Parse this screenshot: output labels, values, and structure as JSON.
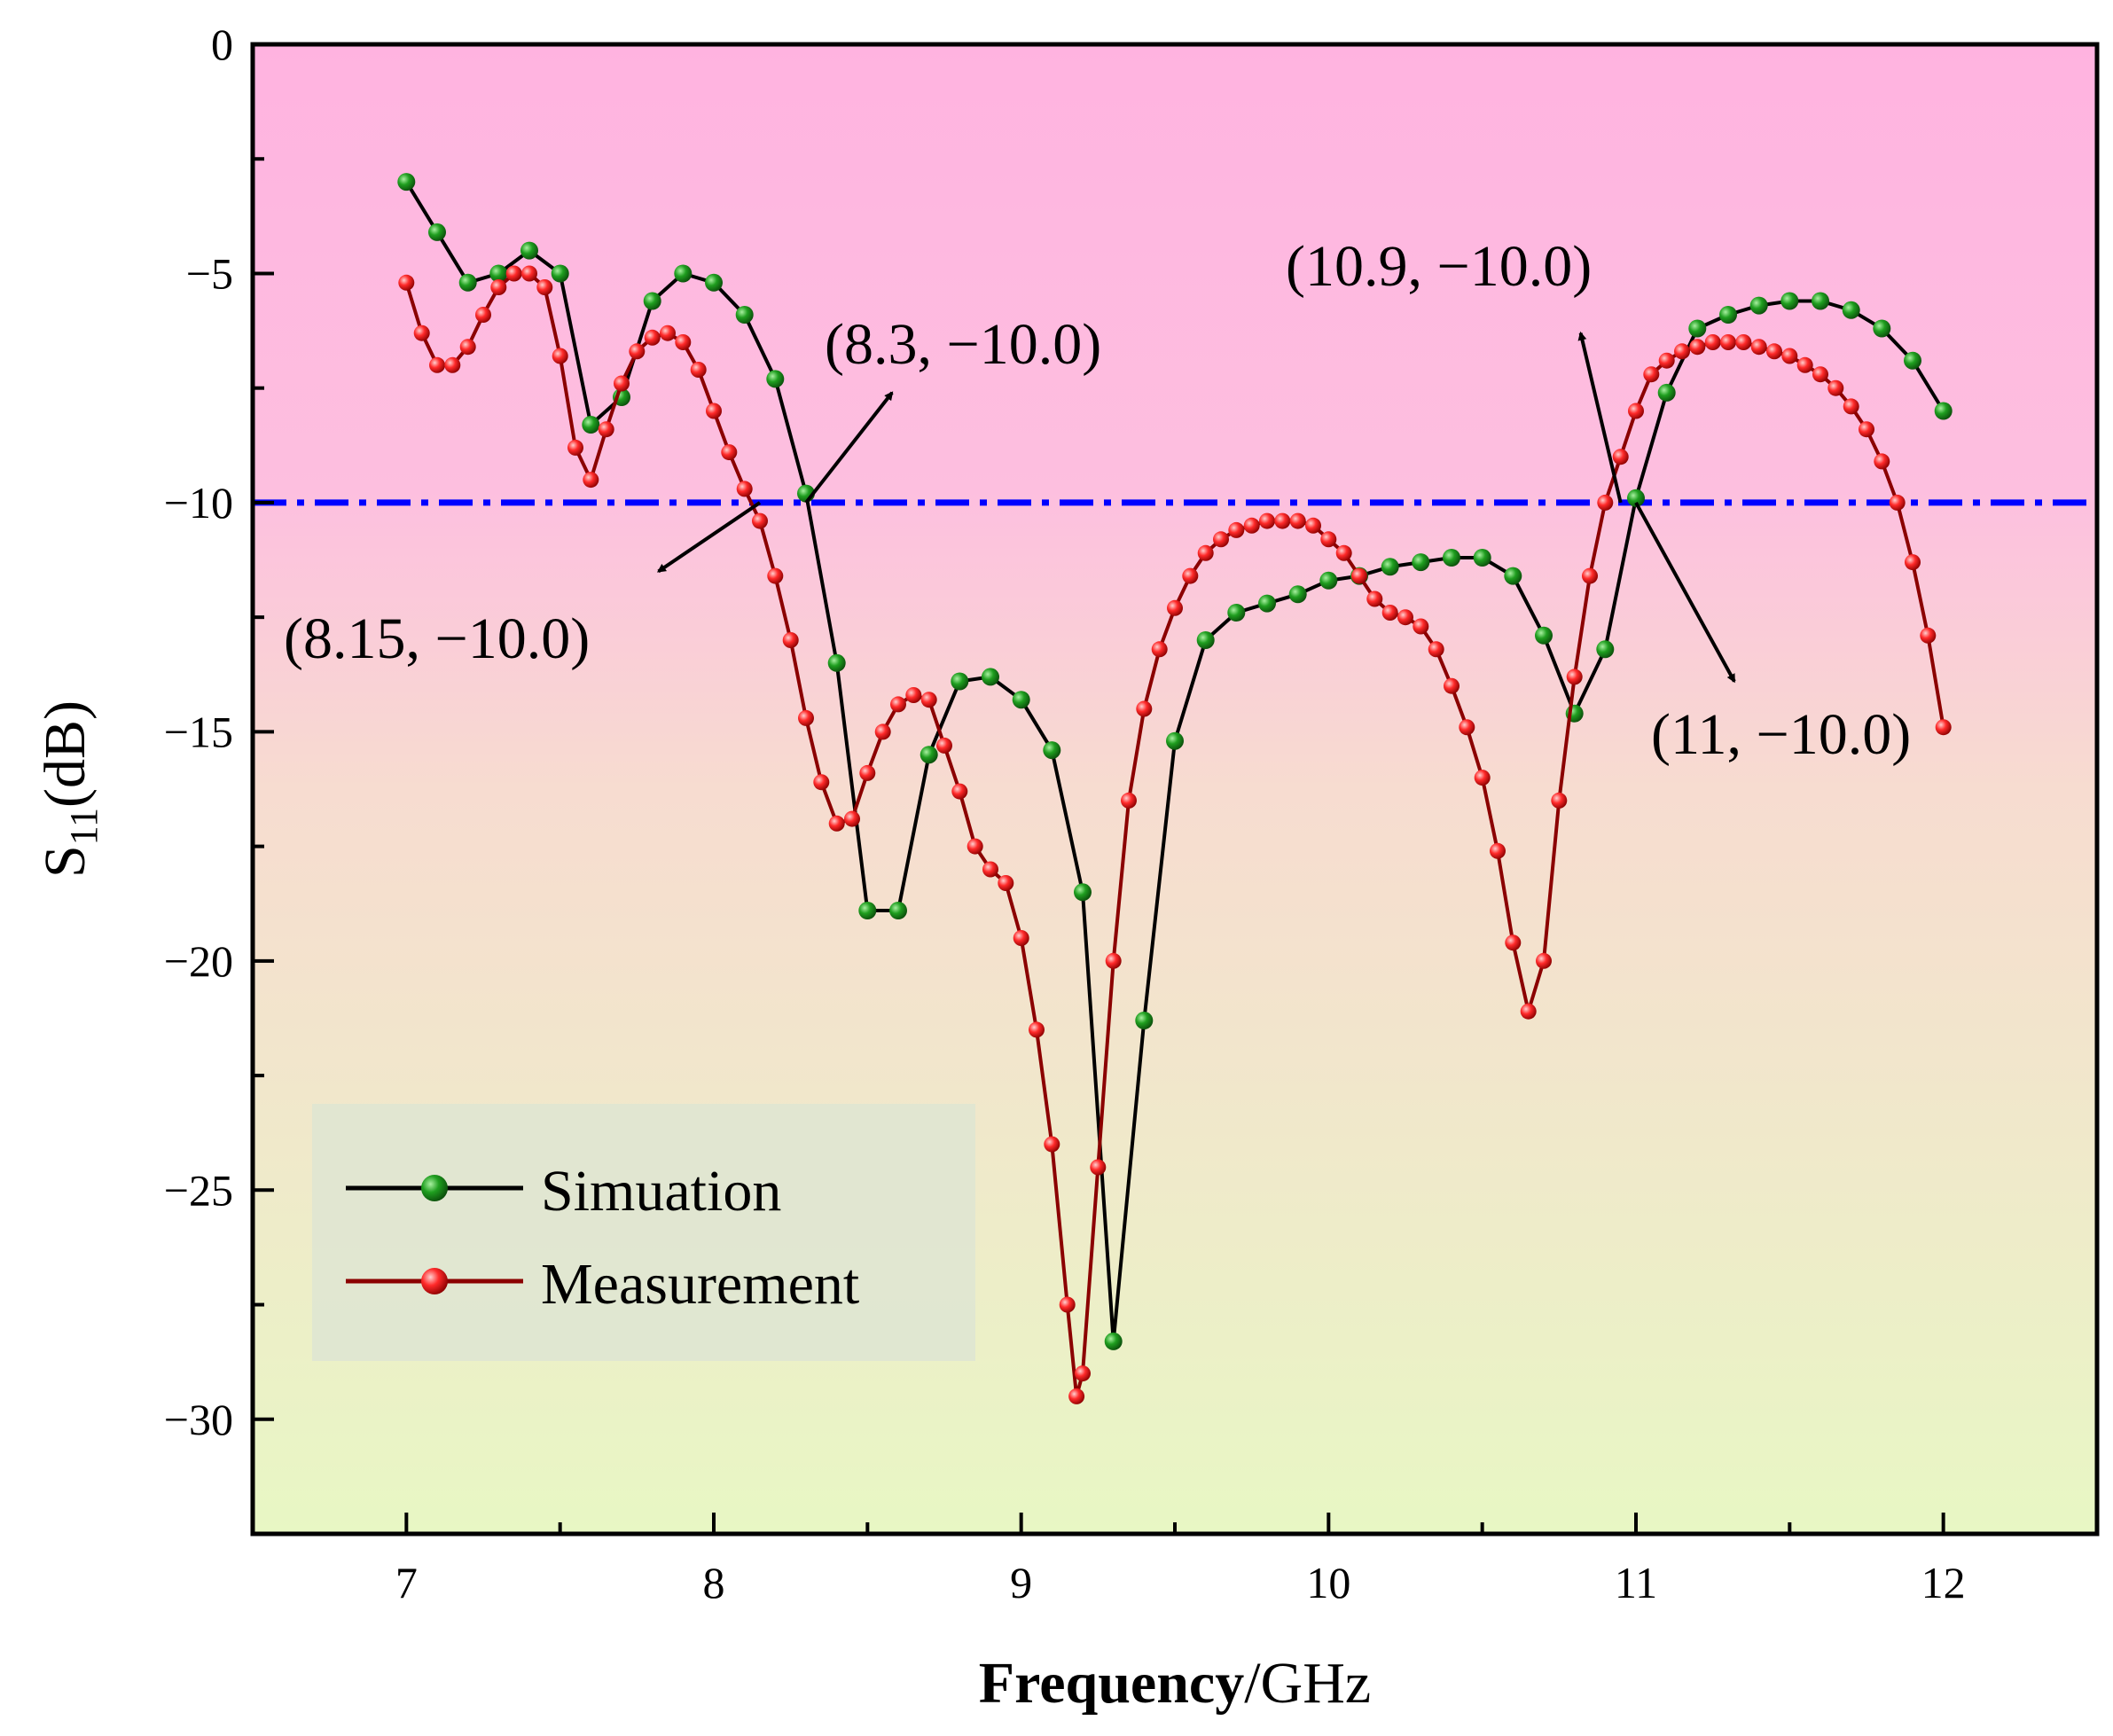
{
  "chart_data": {
    "type": "line",
    "xlabel_bold": "Frequency",
    "xlabel_rest": "/GHz",
    "ylabel_main": "S",
    "ylabel_sub": "11",
    "ylabel_unit": "(dB)",
    "xlim": [
      6.5,
      12.5
    ],
    "ylim": [
      -32.5,
      0
    ],
    "xticks": [
      7,
      8,
      9,
      10,
      11,
      12
    ],
    "yticks": [
      0,
      -5,
      -10,
      -15,
      -20,
      -25,
      -30
    ],
    "xtick_labels": [
      "7",
      "8",
      "9",
      "10",
      "11",
      "12"
    ],
    "ytick_labels": [
      "0",
      "−5",
      "−10",
      "−15",
      "−20",
      "−25",
      "−30"
    ],
    "reference_line": {
      "y": -10,
      "color": "#0000ff",
      "style": "dash-dot"
    },
    "background_gradient": [
      "#ffb3e0",
      "#e8f7c4"
    ],
    "legend": {
      "placement": "bottom-left",
      "entries": [
        "Simuation",
        "Measurement"
      ]
    },
    "series": [
      {
        "name": "Simuation",
        "line_color": "#000000",
        "marker_color": "#1a9a1a",
        "x": [
          7.0,
          7.1,
          7.2,
          7.3,
          7.4,
          7.5,
          7.6,
          7.7,
          7.8,
          7.9,
          8.0,
          8.1,
          8.2,
          8.3,
          8.4,
          8.5,
          8.6,
          8.7,
          8.8,
          8.9,
          9.0,
          9.1,
          9.2,
          9.3,
          9.4,
          9.5,
          9.6,
          9.7,
          9.8,
          9.9,
          10.0,
          10.1,
          10.2,
          10.3,
          10.4,
          10.5,
          10.6,
          10.7,
          10.8,
          10.9,
          11.0,
          11.1,
          11.2,
          11.3,
          11.4,
          11.5,
          11.6,
          11.7,
          11.8,
          11.9,
          12.0
        ],
        "y": [
          -3.0,
          -4.1,
          -5.2,
          -5.0,
          -4.5,
          -5.0,
          -8.3,
          -7.7,
          -5.6,
          -5.0,
          -5.2,
          -5.9,
          -7.3,
          -9.8,
          -13.5,
          -18.9,
          -18.9,
          -15.5,
          -13.9,
          -13.8,
          -14.3,
          -15.4,
          -18.5,
          -28.3,
          -21.3,
          -15.2,
          -13.0,
          -12.4,
          -12.2,
          -12.0,
          -11.7,
          -11.6,
          -11.4,
          -11.3,
          -11.2,
          -11.2,
          -11.6,
          -12.9,
          -14.6,
          -13.2,
          -9.9,
          -7.6,
          -6.2,
          -5.9,
          -5.7,
          -5.6,
          -5.6,
          -5.8,
          -6.2,
          -6.9,
          -8.0
        ]
      },
      {
        "name": "Measurement",
        "line_color": "#8b0000",
        "marker_color": "#ff2020",
        "x": [
          7.0,
          7.05,
          7.1,
          7.15,
          7.2,
          7.25,
          7.3,
          7.35,
          7.4,
          7.45,
          7.5,
          7.55,
          7.6,
          7.65,
          7.7,
          7.75,
          7.8,
          7.85,
          7.9,
          7.95,
          8.0,
          8.05,
          8.1,
          8.15,
          8.2,
          8.25,
          8.3,
          8.35,
          8.4,
          8.45,
          8.5,
          8.55,
          8.6,
          8.65,
          8.7,
          8.75,
          8.8,
          8.85,
          8.9,
          8.95,
          9.0,
          9.05,
          9.1,
          9.15,
          9.18,
          9.2,
          9.25,
          9.3,
          9.35,
          9.4,
          9.45,
          9.5,
          9.55,
          9.6,
          9.65,
          9.7,
          9.75,
          9.8,
          9.85,
          9.9,
          9.95,
          10.0,
          10.05,
          10.1,
          10.15,
          10.2,
          10.25,
          10.3,
          10.35,
          10.4,
          10.45,
          10.5,
          10.55,
          10.6,
          10.65,
          10.7,
          10.75,
          10.8,
          10.85,
          10.9,
          10.95,
          11.0,
          11.05,
          11.1,
          11.15,
          11.2,
          11.25,
          11.3,
          11.35,
          11.4,
          11.45,
          11.5,
          11.55,
          11.6,
          11.65,
          11.7,
          11.75,
          11.8,
          11.85,
          11.9,
          11.95,
          12.0
        ],
        "y": [
          -5.2,
          -6.3,
          -7.0,
          -7.0,
          -6.6,
          -5.9,
          -5.3,
          -5.0,
          -5.0,
          -5.3,
          -6.8,
          -8.8,
          -9.5,
          -8.4,
          -7.4,
          -6.7,
          -6.4,
          -6.3,
          -6.5,
          -7.1,
          -8.0,
          -8.9,
          -9.7,
          -10.4,
          -11.6,
          -13.0,
          -14.7,
          -16.1,
          -17.0,
          -16.9,
          -15.9,
          -15.0,
          -14.4,
          -14.2,
          -14.3,
          -15.3,
          -16.3,
          -17.5,
          -18.0,
          -18.3,
          -19.5,
          -21.5,
          -24.0,
          -27.5,
          -29.5,
          -29.0,
          -24.5,
          -20.0,
          -16.5,
          -14.5,
          -13.2,
          -12.3,
          -11.6,
          -11.1,
          -10.8,
          -10.6,
          -10.5,
          -10.4,
          -10.4,
          -10.4,
          -10.5,
          -10.8,
          -11.1,
          -11.6,
          -12.1,
          -12.4,
          -12.5,
          -12.7,
          -13.2,
          -14.0,
          -14.9,
          -16.0,
          -17.6,
          -19.6,
          -21.1,
          -20.0,
          -16.5,
          -13.8,
          -11.6,
          -10.0,
          -9.0,
          -8.0,
          -7.2,
          -6.9,
          -6.7,
          -6.6,
          -6.5,
          -6.5,
          -6.5,
          -6.6,
          -6.7,
          -6.8,
          -7.0,
          -7.2,
          -7.5,
          -7.9,
          -8.4,
          -9.1,
          -10.0,
          -11.3,
          -12.9,
          -14.9
        ]
      }
    ],
    "annotations": [
      {
        "text": "(8.3,  −10.0)",
        "point": [
          8.3,
          -10.0
        ],
        "arrow_to": [
          8.58,
          -7.6
        ]
      },
      {
        "text": "(8.15,  −10.0)",
        "point": [
          8.15,
          -10.0
        ],
        "arrow_to": [
          7.82,
          -11.5
        ]
      },
      {
        "text": "(10.9, −10.0)",
        "point": [
          10.95,
          -10.0
        ],
        "arrow_to": [
          10.82,
          -6.3
        ]
      },
      {
        "text": "(11,  −10.0)",
        "point": [
          11.0,
          -10.0
        ],
        "arrow_to": [
          11.32,
          -13.9
        ]
      }
    ]
  }
}
